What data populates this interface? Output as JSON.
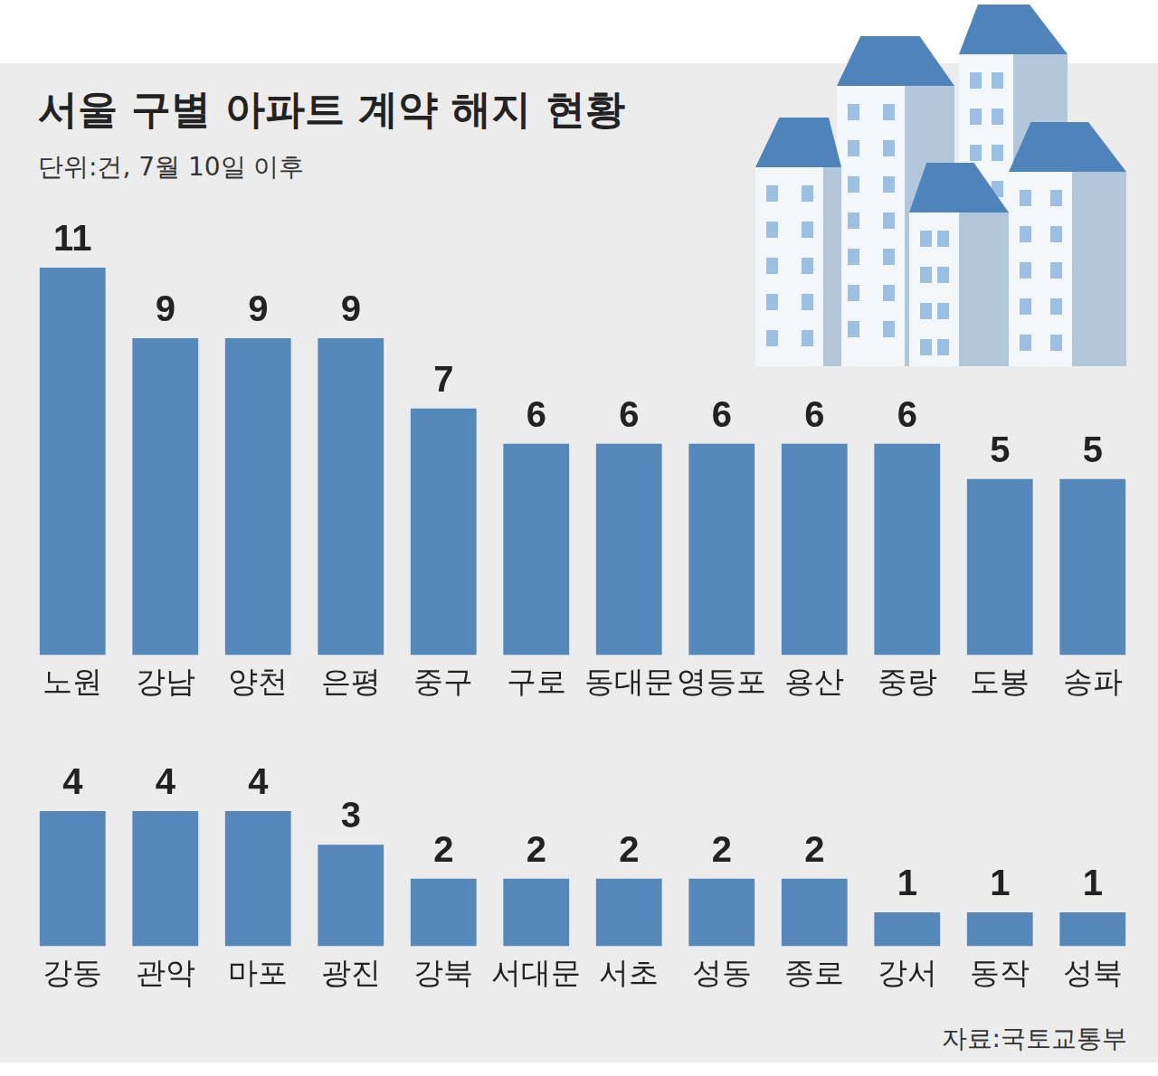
{
  "title": "서울 구별 아파트 계약 해지 현황",
  "subtitle": "단위:건, 7월 10일 이후",
  "source": "자료:국토교통부",
  "chart_data": [
    {
      "type": "bar",
      "categories": [
        "노원",
        "강남",
        "양천",
        "은평",
        "중구",
        "구로",
        "동대문",
        "영등포",
        "용산",
        "중랑",
        "도봉",
        "송파"
      ],
      "values": [
        11,
        9,
        9,
        9,
        7,
        6,
        6,
        6,
        6,
        6,
        5,
        5
      ],
      "color": "#5589bb",
      "ylim": [
        0,
        11
      ],
      "grid": false,
      "data_labels": true,
      "tick_labels": "x"
    },
    {
      "type": "bar",
      "categories": [
        "강동",
        "관악",
        "마포",
        "광진",
        "강북",
        "서대문",
        "서초",
        "성동",
        "종로",
        "강서",
        "동작",
        "성북"
      ],
      "values": [
        4,
        4,
        4,
        3,
        2,
        2,
        2,
        2,
        2,
        1,
        1,
        1
      ],
      "color": "#5589bb",
      "ylim": [
        0,
        4
      ],
      "grid": false,
      "data_labels": true,
      "tick_labels": "x"
    }
  ]
}
